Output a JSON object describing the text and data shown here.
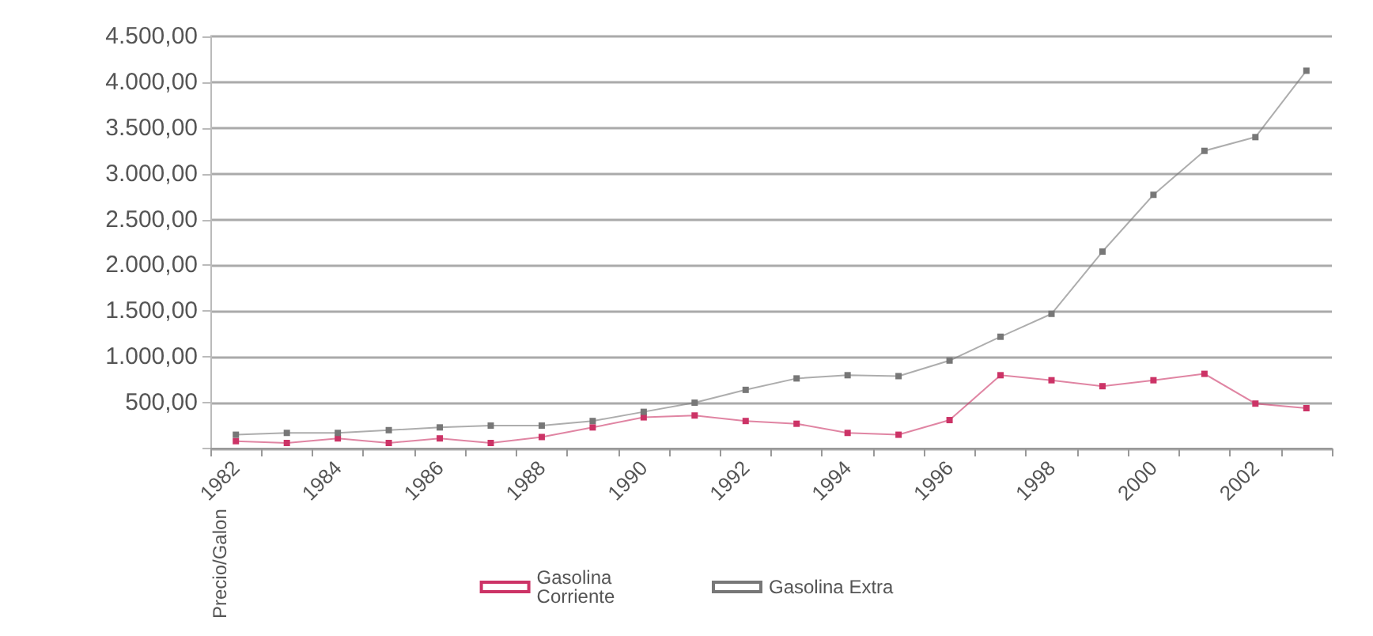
{
  "chart_data": {
    "type": "line",
    "ylabel": "Precio/Galon",
    "categories": [
      "1982",
      null,
      "1984",
      null,
      "1986",
      null,
      "1988",
      null,
      "1990",
      null,
      "1992",
      null,
      "1994",
      null,
      "1996",
      null,
      "1998",
      null,
      "2000",
      null,
      "2002",
      null
    ],
    "series": [
      {
        "name": "Gasolina Corriente",
        "color": "#cc3366",
        "values": [
          80,
          60,
          110,
          60,
          110,
          60,
          125,
          230,
          340,
          360,
          300,
          270,
          170,
          150,
          310,
          800,
          745,
          680,
          745,
          815,
          490,
          440
        ]
      },
      {
        "name": "Gasolina Extra",
        "color": "#777777",
        "values": [
          150,
          170,
          170,
          200,
          230,
          250,
          250,
          300,
          400,
          500,
          640,
          765,
          800,
          790,
          960,
          1220,
          1470,
          2150,
          2770,
          3250,
          3400,
          4125
        ]
      }
    ],
    "ylim": [
      0,
      4500
    ],
    "yticks": [
      {
        "value": 0,
        "label": null
      },
      {
        "value": 500,
        "label": "500,00"
      },
      {
        "value": 1000,
        "label": "1.000,00"
      },
      {
        "value": 1500,
        "label": "1.500,00"
      },
      {
        "value": 2000,
        "label": "2.000,00"
      },
      {
        "value": 2500,
        "label": "2.500,00"
      },
      {
        "value": 3000,
        "label": "3.000,00"
      },
      {
        "value": 3500,
        "label": "3.500,00"
      },
      {
        "value": 4000,
        "label": "4.000,00"
      },
      {
        "value": 4500,
        "label": "4.500,00"
      }
    ],
    "grid": "y",
    "legend": "bottom",
    "marker": "square",
    "line_style": "solid"
  }
}
